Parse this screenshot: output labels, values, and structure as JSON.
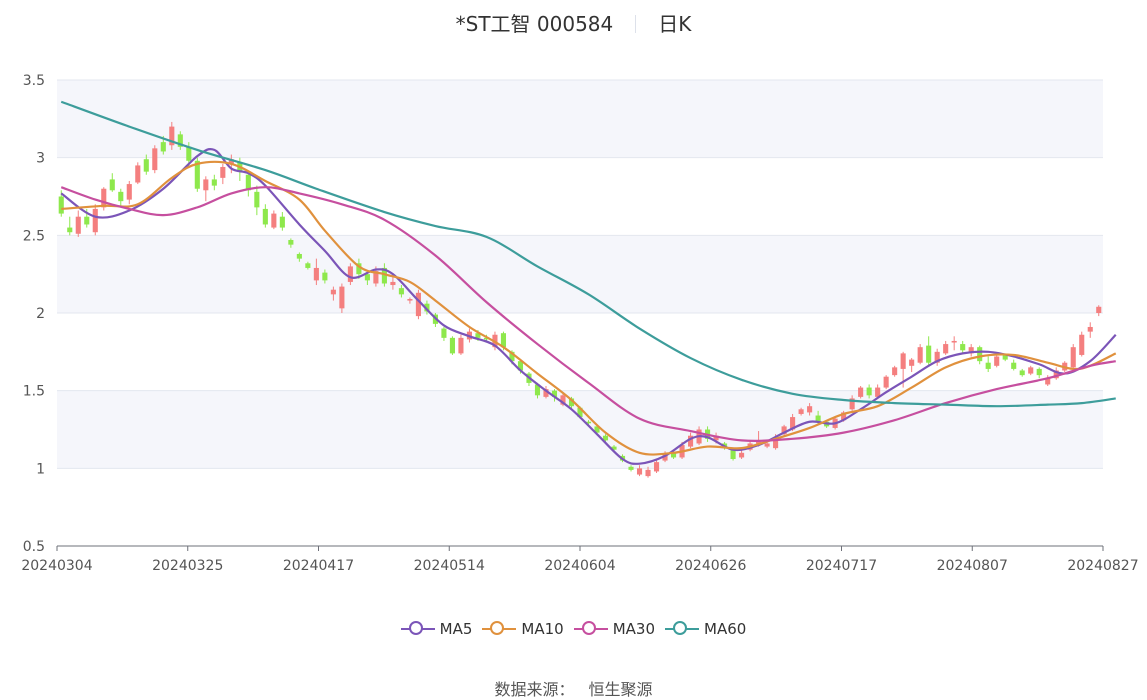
{
  "header": {
    "stock": "*ST工智 000584",
    "period": "日K"
  },
  "source": {
    "label": "数据来源：",
    "name": "恒生聚源"
  },
  "colors": {
    "up": "#f47f7f",
    "down": "#8ee84c",
    "grid": "#e3e7ef",
    "band": "#f5f6fb"
  },
  "chart_data": {
    "type": "candlestick",
    "ylim": [
      0.5,
      3.5
    ],
    "y_ticks": [
      "0.5",
      "1",
      "1.5",
      "2",
      "2.5",
      "3",
      "3.5"
    ],
    "x_ticks": [
      "20240304",
      "20240325",
      "20240417",
      "20240514",
      "20240604",
      "20240626",
      "20240717",
      "20240807",
      "20240827"
    ],
    "candles": [
      [
        2.75,
        2.64,
        2.79,
        2.62
      ],
      [
        2.55,
        2.52,
        2.62,
        2.5
      ],
      [
        2.51,
        2.62,
        2.66,
        2.49
      ],
      [
        2.62,
        2.57,
        2.67,
        2.55
      ],
      [
        2.52,
        2.67,
        2.7,
        2.5
      ],
      [
        2.68,
        2.8,
        2.81,
        2.66
      ],
      [
        2.86,
        2.79,
        2.9,
        2.78
      ],
      [
        2.78,
        2.72,
        2.8,
        2.68
      ],
      [
        2.73,
        2.83,
        2.85,
        2.7
      ],
      [
        2.84,
        2.95,
        2.97,
        2.83
      ],
      [
        2.99,
        2.91,
        3.02,
        2.89
      ],
      [
        2.92,
        3.06,
        3.08,
        2.9
      ],
      [
        3.1,
        3.04,
        3.14,
        3.02
      ],
      [
        3.08,
        3.2,
        3.23,
        3.05
      ],
      [
        3.15,
        3.07,
        3.17,
        3.05
      ],
      [
        3.07,
        2.98,
        3.1,
        2.94
      ],
      [
        2.98,
        2.8,
        3.0,
        2.78
      ],
      [
        2.79,
        2.86,
        2.88,
        2.72
      ],
      [
        2.86,
        2.82,
        2.89,
        2.79
      ],
      [
        2.87,
        2.94,
        2.96,
        2.83
      ],
      [
        2.96,
        2.99,
        3.02,
        2.9
      ],
      [
        2.97,
        2.91,
        3.0,
        2.85
      ],
      [
        2.89,
        2.79,
        2.91,
        2.75
      ],
      [
        2.78,
        2.68,
        2.82,
        2.63
      ],
      [
        2.67,
        2.57,
        2.7,
        2.55
      ],
      [
        2.55,
        2.64,
        2.66,
        2.54
      ],
      [
        2.62,
        2.55,
        2.65,
        2.53
      ],
      [
        2.47,
        2.44,
        2.48,
        2.42
      ],
      [
        2.38,
        2.35,
        2.39,
        2.33
      ],
      [
        2.32,
        2.29,
        2.33,
        2.28
      ],
      [
        2.21,
        2.29,
        2.35,
        2.18
      ],
      [
        2.26,
        2.21,
        2.28,
        2.19
      ],
      [
        2.12,
        2.15,
        2.17,
        2.08
      ],
      [
        2.03,
        2.17,
        2.19,
        2.0
      ],
      [
        2.2,
        2.3,
        2.32,
        2.18
      ],
      [
        2.32,
        2.25,
        2.35,
        2.22
      ],
      [
        2.25,
        2.21,
        2.27,
        2.18
      ],
      [
        2.19,
        2.27,
        2.3,
        2.17
      ],
      [
        2.29,
        2.19,
        2.32,
        2.17
      ],
      [
        2.18,
        2.2,
        2.25,
        2.15
      ],
      [
        2.16,
        2.12,
        2.18,
        2.1
      ],
      [
        2.08,
        2.09,
        2.1,
        2.06
      ],
      [
        1.98,
        2.13,
        2.15,
        1.96
      ],
      [
        2.06,
        2.01,
        2.08,
        1.99
      ],
      [
        1.99,
        1.93,
        2.0,
        1.91
      ],
      [
        1.9,
        1.84,
        1.91,
        1.82
      ],
      [
        1.84,
        1.74,
        1.85,
        1.73
      ],
      [
        1.74,
        1.84,
        1.86,
        1.73
      ],
      [
        1.83,
        1.88,
        1.9,
        1.81
      ],
      [
        1.87,
        1.84,
        1.89,
        1.82
      ],
      [
        1.84,
        1.83,
        1.86,
        1.81
      ],
      [
        1.78,
        1.86,
        1.88,
        1.76
      ],
      [
        1.87,
        1.78,
        1.88,
        1.76
      ],
      [
        1.75,
        1.69,
        1.76,
        1.67
      ],
      [
        1.69,
        1.63,
        1.7,
        1.61
      ],
      [
        1.61,
        1.55,
        1.62,
        1.53
      ],
      [
        1.54,
        1.47,
        1.55,
        1.45
      ],
      [
        1.46,
        1.51,
        1.53,
        1.45
      ],
      [
        1.5,
        1.46,
        1.51,
        1.43
      ],
      [
        1.41,
        1.47,
        1.49,
        1.4
      ],
      [
        1.45,
        1.4,
        1.46,
        1.38
      ],
      [
        1.39,
        1.33,
        1.4,
        1.32
      ],
      [
        1.3,
        1.29,
        1.31,
        1.28
      ],
      [
        1.27,
        1.23,
        1.28,
        1.22
      ],
      [
        1.21,
        1.18,
        1.22,
        1.17
      ],
      [
        1.14,
        1.12,
        1.15,
        1.11
      ],
      [
        1.08,
        1.05,
        1.09,
        1.04
      ],
      [
        1.01,
        0.99,
        1.02,
        0.98
      ],
      [
        0.96,
        1.0,
        1.02,
        0.95
      ],
      [
        0.95,
        0.99,
        1.01,
        0.94
      ],
      [
        0.98,
        1.04,
        1.06,
        0.97
      ],
      [
        1.05,
        1.09,
        1.11,
        1.04
      ],
      [
        1.1,
        1.07,
        1.11,
        1.06
      ],
      [
        1.07,
        1.15,
        1.17,
        1.06
      ],
      [
        1.14,
        1.21,
        1.23,
        1.13
      ],
      [
        1.16,
        1.25,
        1.27,
        1.15
      ],
      [
        1.25,
        1.19,
        1.27,
        1.17
      ],
      [
        1.18,
        1.21,
        1.23,
        1.16
      ],
      [
        1.16,
        1.14,
        1.17,
        1.12
      ],
      [
        1.12,
        1.06,
        1.13,
        1.05
      ],
      [
        1.07,
        1.1,
        1.12,
        1.06
      ],
      [
        1.12,
        1.16,
        1.18,
        1.11
      ],
      [
        1.16,
        1.17,
        1.24,
        1.14
      ],
      [
        1.14,
        1.16,
        1.18,
        1.13
      ],
      [
        1.13,
        1.2,
        1.22,
        1.12
      ],
      [
        1.22,
        1.27,
        1.28,
        1.21
      ],
      [
        1.25,
        1.33,
        1.35,
        1.24
      ],
      [
        1.35,
        1.38,
        1.39,
        1.34
      ],
      [
        1.36,
        1.4,
        1.42,
        1.34
      ],
      [
        1.34,
        1.3,
        1.37,
        1.28
      ],
      [
        1.3,
        1.27,
        1.31,
        1.26
      ],
      [
        1.26,
        1.32,
        1.33,
        1.25
      ],
      [
        1.31,
        1.36,
        1.37,
        1.3
      ],
      [
        1.38,
        1.45,
        1.47,
        1.37
      ],
      [
        1.46,
        1.52,
        1.53,
        1.45
      ],
      [
        1.52,
        1.47,
        1.54,
        1.45
      ],
      [
        1.46,
        1.52,
        1.54,
        1.45
      ],
      [
        1.52,
        1.59,
        1.6,
        1.51
      ],
      [
        1.6,
        1.65,
        1.66,
        1.59
      ],
      [
        1.64,
        1.74,
        1.75,
        1.52
      ],
      [
        1.66,
        1.7,
        1.71,
        1.62
      ],
      [
        1.68,
        1.78,
        1.8,
        1.67
      ],
      [
        1.79,
        1.68,
        1.85,
        1.66
      ],
      [
        1.68,
        1.75,
        1.77,
        1.66
      ],
      [
        1.74,
        1.8,
        1.82,
        1.73
      ],
      [
        1.81,
        1.82,
        1.85,
        1.76
      ],
      [
        1.8,
        1.76,
        1.82,
        1.74
      ],
      [
        1.74,
        1.78,
        1.8,
        1.72
      ],
      [
        1.78,
        1.69,
        1.79,
        1.67
      ],
      [
        1.68,
        1.64,
        1.72,
        1.62
      ],
      [
        1.66,
        1.72,
        1.74,
        1.65
      ],
      [
        1.73,
        1.7,
        1.74,
        1.69
      ],
      [
        1.68,
        1.64,
        1.7,
        1.63
      ],
      [
        1.63,
        1.6,
        1.64,
        1.59
      ],
      [
        1.61,
        1.65,
        1.66,
        1.6
      ],
      [
        1.64,
        1.6,
        1.65,
        1.58
      ],
      [
        1.54,
        1.58,
        1.6,
        1.53
      ],
      [
        1.58,
        1.63,
        1.65,
        1.57
      ],
      [
        1.63,
        1.68,
        1.69,
        1.62
      ],
      [
        1.65,
        1.78,
        1.8,
        1.64
      ],
      [
        1.73,
        1.86,
        1.88,
        1.72
      ],
      [
        1.88,
        1.91,
        1.94,
        1.84
      ],
      [
        2.0,
        2.04,
        2.05,
        1.98
      ]
    ],
    "series": [
      {
        "name": "MA5",
        "color": "#7b55b8",
        "points": [
          [
            0,
            2.77
          ],
          [
            4,
            2.62
          ],
          [
            8,
            2.66
          ],
          [
            12,
            2.8
          ],
          [
            16,
            3.01
          ],
          [
            18,
            3.05
          ],
          [
            20,
            2.93
          ],
          [
            22,
            2.9
          ],
          [
            24,
            2.82
          ],
          [
            28,
            2.57
          ],
          [
            31,
            2.4
          ],
          [
            34,
            2.23
          ],
          [
            37,
            2.28
          ],
          [
            39,
            2.25
          ],
          [
            42,
            2.08
          ],
          [
            45,
            1.92
          ],
          [
            48,
            1.85
          ],
          [
            51,
            1.79
          ],
          [
            54,
            1.63
          ],
          [
            57,
            1.5
          ],
          [
            60,
            1.38
          ],
          [
            63,
            1.22
          ],
          [
            66,
            1.06
          ],
          [
            68,
            1.03
          ],
          [
            71,
            1.08
          ],
          [
            74,
            1.19
          ],
          [
            76,
            1.2
          ],
          [
            79,
            1.12
          ],
          [
            82,
            1.15
          ],
          [
            85,
            1.23
          ],
          [
            88,
            1.3
          ],
          [
            91,
            1.29
          ],
          [
            94,
            1.38
          ],
          [
            97,
            1.49
          ],
          [
            100,
            1.59
          ],
          [
            103,
            1.69
          ],
          [
            106,
            1.74
          ],
          [
            109,
            1.75
          ],
          [
            112,
            1.72
          ],
          [
            115,
            1.67
          ],
          [
            118,
            1.61
          ],
          [
            121,
            1.69
          ],
          [
            124,
            1.86
          ]
        ]
      },
      {
        "name": "MA10",
        "color": "#e0913d",
        "points": [
          [
            0,
            2.67
          ],
          [
            5,
            2.69
          ],
          [
            9,
            2.7
          ],
          [
            13,
            2.87
          ],
          [
            16,
            2.96
          ],
          [
            20,
            2.96
          ],
          [
            24,
            2.85
          ],
          [
            28,
            2.73
          ],
          [
            31,
            2.53
          ],
          [
            35,
            2.3
          ],
          [
            38,
            2.25
          ],
          [
            41,
            2.2
          ],
          [
            44,
            2.08
          ],
          [
            48,
            1.91
          ],
          [
            52,
            1.78
          ],
          [
            56,
            1.61
          ],
          [
            60,
            1.44
          ],
          [
            64,
            1.23
          ],
          [
            68,
            1.1
          ],
          [
            72,
            1.1
          ],
          [
            76,
            1.14
          ],
          [
            80,
            1.13
          ],
          [
            84,
            1.19
          ],
          [
            88,
            1.26
          ],
          [
            92,
            1.35
          ],
          [
            96,
            1.4
          ],
          [
            100,
            1.52
          ],
          [
            104,
            1.65
          ],
          [
            108,
            1.72
          ],
          [
            112,
            1.73
          ],
          [
            116,
            1.68
          ],
          [
            119,
            1.64
          ],
          [
            121,
            1.66
          ],
          [
            124,
            1.74
          ]
        ]
      },
      {
        "name": "MA30",
        "color": "#c64f9f",
        "points": [
          [
            0,
            2.81
          ],
          [
            4,
            2.73
          ],
          [
            8,
            2.67
          ],
          [
            12,
            2.63
          ],
          [
            16,
            2.68
          ],
          [
            20,
            2.77
          ],
          [
            24,
            2.81
          ],
          [
            28,
            2.77
          ],
          [
            33,
            2.7
          ],
          [
            38,
            2.6
          ],
          [
            44,
            2.37
          ],
          [
            50,
            2.07
          ],
          [
            56,
            1.8
          ],
          [
            62,
            1.55
          ],
          [
            68,
            1.32
          ],
          [
            74,
            1.24
          ],
          [
            80,
            1.18
          ],
          [
            86,
            1.19
          ],
          [
            92,
            1.23
          ],
          [
            98,
            1.31
          ],
          [
            104,
            1.42
          ],
          [
            110,
            1.51
          ],
          [
            116,
            1.58
          ],
          [
            121,
            1.66
          ],
          [
            124,
            1.69
          ]
        ]
      },
      {
        "name": "MA60",
        "color": "#3d9d9b",
        "points": [
          [
            0,
            3.36
          ],
          [
            8,
            3.2
          ],
          [
            16,
            3.05
          ],
          [
            24,
            2.92
          ],
          [
            30,
            2.8
          ],
          [
            38,
            2.65
          ],
          [
            44,
            2.56
          ],
          [
            50,
            2.49
          ],
          [
            56,
            2.3
          ],
          [
            62,
            2.12
          ],
          [
            68,
            1.9
          ],
          [
            74,
            1.71
          ],
          [
            80,
            1.57
          ],
          [
            86,
            1.48
          ],
          [
            92,
            1.44
          ],
          [
            98,
            1.42
          ],
          [
            104,
            1.41
          ],
          [
            110,
            1.4
          ],
          [
            116,
            1.41
          ],
          [
            120,
            1.42
          ],
          [
            124,
            1.45
          ]
        ]
      }
    ]
  }
}
